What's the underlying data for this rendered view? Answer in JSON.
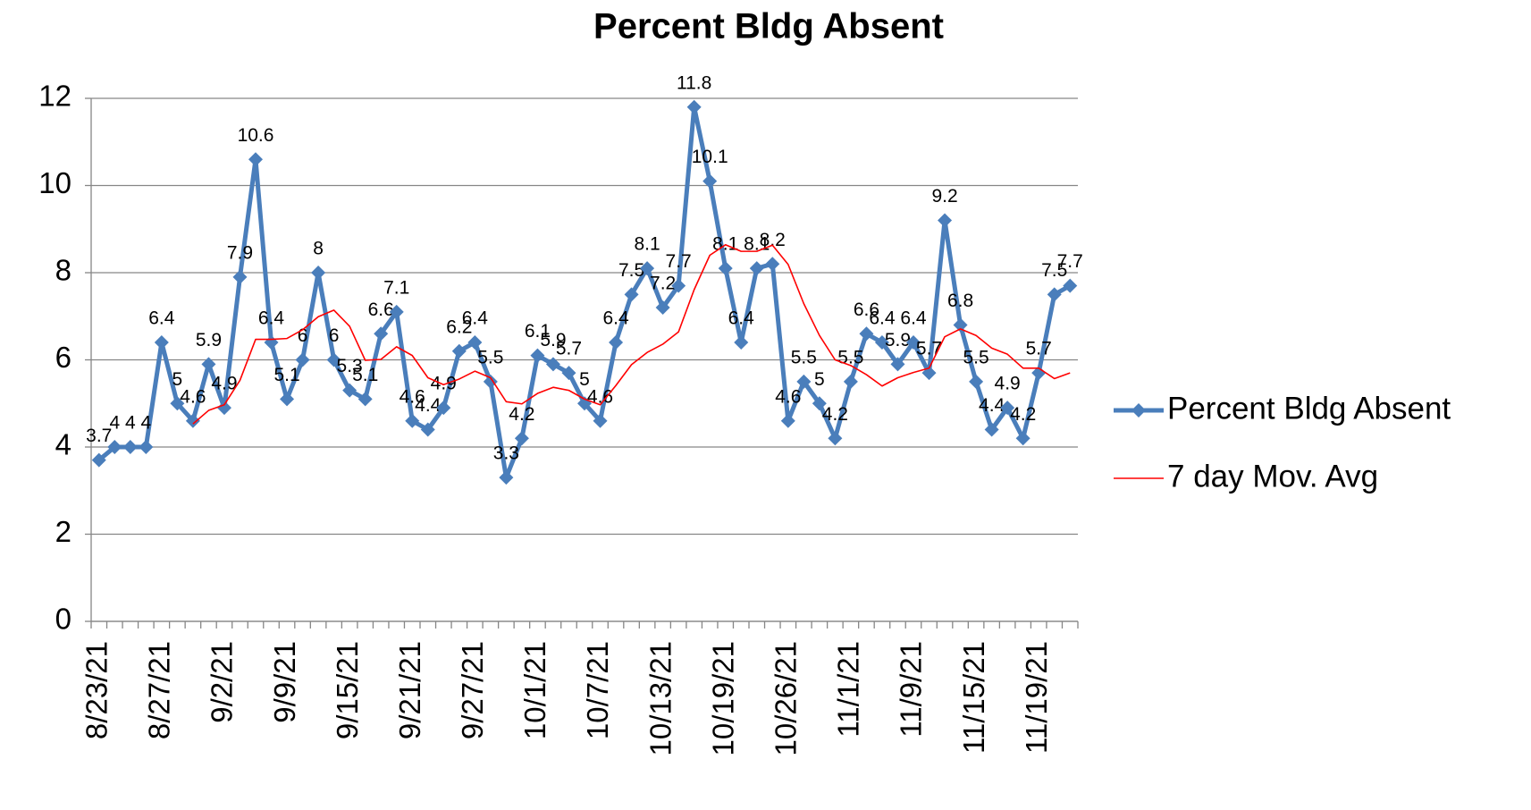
{
  "chart_data": {
    "type": "line",
    "title": "Percent Bldg Absent",
    "categories": [
      "8/23/21",
      null,
      null,
      null,
      "8/27/21",
      null,
      null,
      null,
      "9/2/21",
      null,
      null,
      null,
      "9/9/21",
      null,
      null,
      null,
      "9/15/21",
      null,
      null,
      null,
      "9/21/21",
      null,
      null,
      null,
      "9/27/21",
      null,
      null,
      null,
      "10/1/21",
      null,
      null,
      null,
      "10/7/21",
      null,
      null,
      null,
      "10/13/21",
      null,
      null,
      null,
      "10/19/21",
      null,
      null,
      null,
      "10/26/21",
      null,
      null,
      null,
      "11/1/21",
      null,
      null,
      null,
      "11/9/21",
      null,
      null,
      null,
      "11/15/21",
      null,
      null,
      null,
      "11/19/21",
      null,
      null
    ],
    "series": [
      {
        "name": "Percent Bldg Absent",
        "color": "#4a7ebb",
        "marker": "diamond",
        "data_labels": true,
        "values": [
          3.7,
          4,
          4,
          4,
          6.4,
          5,
          4.6,
          5.9,
          4.9,
          7.9,
          10.6,
          6.4,
          5.1,
          6,
          8,
          6,
          5.3,
          5.1,
          6.6,
          7.1,
          4.6,
          4.4,
          4.9,
          6.2,
          6.4,
          5.5,
          3.3,
          4.2,
          6.1,
          5.9,
          5.7,
          5,
          4.6,
          6.4,
          7.5,
          8.1,
          7.2,
          7.7,
          11.8,
          10.1,
          8.1,
          6.4,
          8.1,
          8.2,
          4.6,
          5.5,
          5,
          4.2,
          5.5,
          6.6,
          6.4,
          5.9,
          6.4,
          5.7,
          9.2,
          6.8,
          5.5,
          4.4,
          4.9,
          4.2,
          5.7,
          7.5,
          7.7
        ]
      },
      {
        "name": "7 day Mov. Avg",
        "color": "#ff0000",
        "marker": "none",
        "data_labels": false,
        "values": [
          null,
          null,
          null,
          null,
          null,
          null,
          4.53,
          4.84,
          4.97,
          5.53,
          6.47,
          6.47,
          6.49,
          6.69,
          6.99,
          7.14,
          6.77,
          5.99,
          6.01,
          6.3,
          6.1,
          5.59,
          5.43,
          5.56,
          5.74,
          5.59,
          5.04,
          4.99,
          5.23,
          5.37,
          5.3,
          5.1,
          4.97,
          5.41,
          5.89,
          6.17,
          6.36,
          6.64,
          7.61,
          8.4,
          8.64,
          8.49,
          8.49,
          8.63,
          8.19,
          7.29,
          6.56,
          6,
          5.87,
          5.66,
          5.4,
          5.59,
          5.71,
          5.81,
          6.53,
          6.71,
          6.56,
          6.27,
          6.13,
          5.81,
          5.81,
          5.57,
          5.7
        ]
      }
    ],
    "ylim": [
      0,
      12
    ],
    "yticks": [
      0,
      2,
      4,
      6,
      8,
      10,
      12
    ],
    "grid": true,
    "legend": "right"
  }
}
